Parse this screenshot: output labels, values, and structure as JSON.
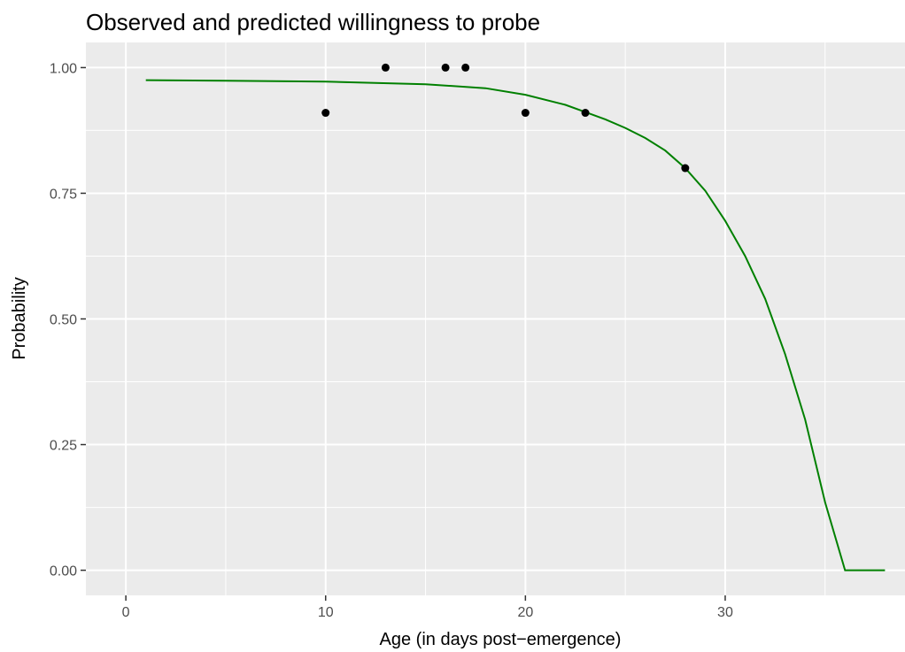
{
  "chart_data": {
    "type": "scatter",
    "title": "Observed and predicted willingness to probe",
    "xlabel": "Age (in days post−emergence)",
    "ylabel": "Probability",
    "xlim": [
      -2,
      39
    ],
    "ylim": [
      -0.05,
      1.05
    ],
    "x_ticks": [
      0,
      10,
      20,
      30
    ],
    "x_tick_labels": [
      "0",
      "10",
      "20",
      "30"
    ],
    "y_ticks": [
      0,
      0.25,
      0.5,
      0.75,
      1
    ],
    "y_tick_labels": [
      "0.00",
      "0.25",
      "0.50",
      "0.75",
      "1.00"
    ],
    "grid": true,
    "legend": "none",
    "colors": {
      "panel": "#ebebeb",
      "grid": "#ffffff",
      "points": "#000000",
      "line": "#008000"
    },
    "series": [
      {
        "type": "scatter",
        "x": [
          10,
          13,
          16,
          17,
          20,
          23,
          28
        ],
        "y": [
          0.91,
          1.0,
          1.0,
          1.0,
          0.91,
          0.91,
          0.8
        ]
      },
      {
        "type": "line",
        "x": [
          1,
          5,
          10,
          15,
          18,
          20,
          22,
          24,
          25,
          26,
          27,
          28,
          29,
          30,
          31,
          32,
          33,
          34,
          35,
          36,
          37,
          38
        ],
        "y": [
          0.975,
          0.974,
          0.972,
          0.967,
          0.959,
          0.946,
          0.926,
          0.897,
          0.88,
          0.86,
          0.835,
          0.8,
          0.755,
          0.695,
          0.625,
          0.54,
          0.43,
          0.3,
          0.135,
          0.0,
          0.0,
          0.0
        ]
      }
    ]
  }
}
